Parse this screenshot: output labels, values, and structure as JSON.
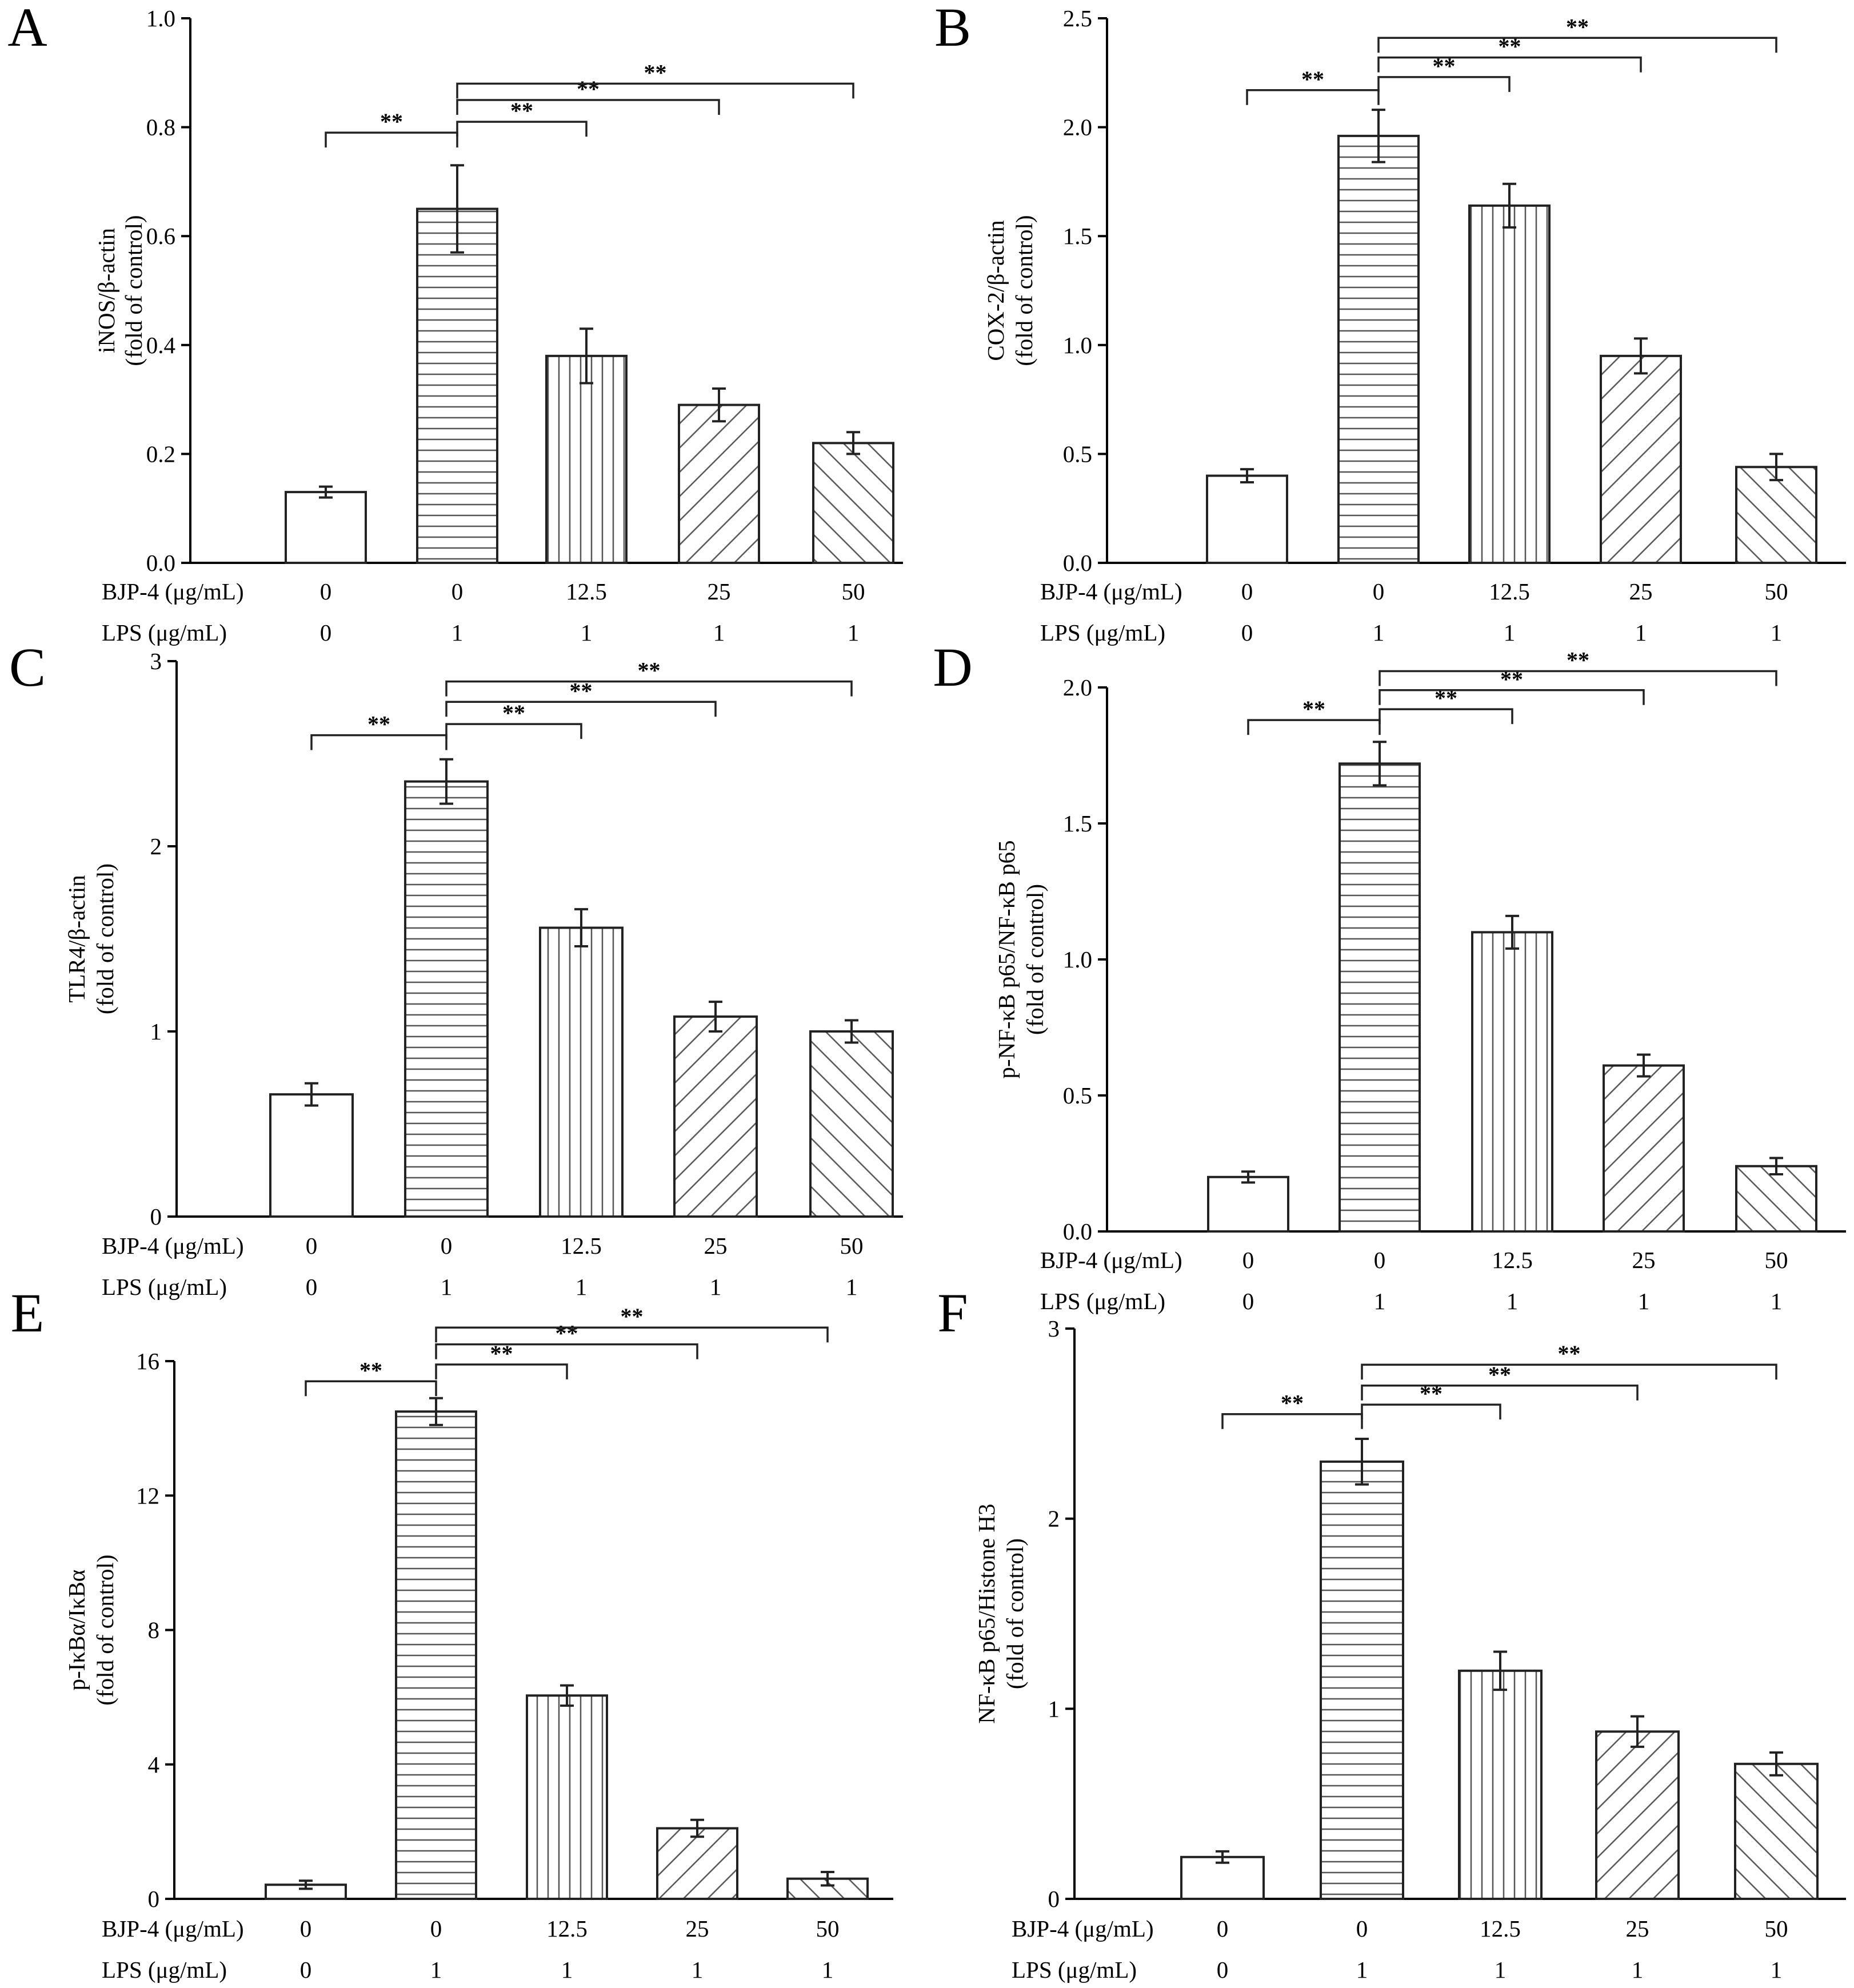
{
  "figure": {
    "row_labels": [
      "BJP-4 (μg/mL)",
      "LPS (μg/mL)"
    ],
    "bjp4_doses": [
      "0",
      "0",
      "12.5",
      "25",
      "50"
    ],
    "lps_doses": [
      "0",
      "1",
      "1",
      "1",
      "1"
    ],
    "significance_mark": "**",
    "pattern_names": [
      "blank",
      "horizontal-lines",
      "vertical-lines",
      "forward-diagonal",
      "backward-diagonal"
    ]
  },
  "chart_data": [
    {
      "panel": "A",
      "type": "bar",
      "ylabel": "iNOS/β-actin",
      "ylabel_unit": "(fold of control)",
      "ylim": [
        0,
        1.0
      ],
      "yticks": [
        0.0,
        0.2,
        0.4,
        0.6,
        0.8,
        1.0
      ],
      "ytick_labels": [
        "0.0",
        "0.2",
        "0.4",
        "0.6",
        "0.8",
        "1.0"
      ],
      "categories": [
        "BJP-4 0 / LPS 0",
        "BJP-4 0 / LPS 1",
        "BJP-4 12.5 / LPS 1",
        "BJP-4 25 / LPS 1",
        "BJP-4 50 / LPS 1"
      ],
      "values": [
        0.13,
        0.65,
        0.38,
        0.29,
        0.22
      ],
      "errors": [
        0.01,
        0.08,
        0.05,
        0.03,
        0.02
      ],
      "significance": [
        {
          "from": 0,
          "to": 1,
          "y": 0.79,
          "label": "**"
        },
        {
          "from": 1,
          "to": 2,
          "y": 0.81,
          "label": "**"
        },
        {
          "from": 1,
          "to": 3,
          "y": 0.85,
          "label": "**"
        },
        {
          "from": 1,
          "to": 4,
          "y": 0.88,
          "label": "**"
        }
      ]
    },
    {
      "panel": "B",
      "type": "bar",
      "ylabel": "COX-2/β-actin",
      "ylabel_unit": "(fold of control)",
      "ylim": [
        0,
        2.5
      ],
      "yticks": [
        0.0,
        0.5,
        1.0,
        1.5,
        2.0,
        2.5
      ],
      "ytick_labels": [
        "0.0",
        "0.5",
        "1.0",
        "1.5",
        "2.0",
        "2.5"
      ],
      "categories": [
        "BJP-4 0 / LPS 0",
        "BJP-4 0 / LPS 1",
        "BJP-4 12.5 / LPS 1",
        "BJP-4 25 / LPS 1",
        "BJP-4 50 / LPS 1"
      ],
      "values": [
        0.4,
        1.96,
        1.64,
        0.95,
        0.44
      ],
      "errors": [
        0.03,
        0.12,
        0.1,
        0.08,
        0.06
      ],
      "significance": [
        {
          "from": 0,
          "to": 1,
          "y": 2.17,
          "label": "**"
        },
        {
          "from": 1,
          "to": 2,
          "y": 2.23,
          "label": "**"
        },
        {
          "from": 1,
          "to": 3,
          "y": 2.32,
          "label": "**"
        },
        {
          "from": 1,
          "to": 4,
          "y": 2.41,
          "label": "**"
        }
      ]
    },
    {
      "panel": "C",
      "type": "bar",
      "ylabel": "TLR4/β-actin",
      "ylabel_unit": "(fold of control)",
      "ylim": [
        0,
        3
      ],
      "yticks": [
        0,
        1,
        2,
        3
      ],
      "ytick_labels": [
        "0",
        "1",
        "2",
        "3"
      ],
      "categories": [
        "BJP-4 0 / LPS 0",
        "BJP-4 0 / LPS 1",
        "BJP-4 12.5 / LPS 1",
        "BJP-4 25 / LPS 1",
        "BJP-4 50 / LPS 1"
      ],
      "values": [
        0.66,
        2.35,
        1.56,
        1.08,
        1.0
      ],
      "errors": [
        0.06,
        0.12,
        0.1,
        0.08,
        0.06
      ],
      "significance": [
        {
          "from": 0,
          "to": 1,
          "y": 2.6,
          "label": "**"
        },
        {
          "from": 1,
          "to": 2,
          "y": 2.66,
          "label": "**"
        },
        {
          "from": 1,
          "to": 3,
          "y": 2.78,
          "label": "**"
        },
        {
          "from": 1,
          "to": 4,
          "y": 2.89,
          "label": "**"
        }
      ]
    },
    {
      "panel": "D",
      "type": "bar",
      "ylabel": "p-NF-κB p65/NF-κB p65",
      "ylabel_unit": "(fold of control)",
      "ylim": [
        0,
        2.0
      ],
      "yticks": [
        0.0,
        0.5,
        1.0,
        1.5,
        2.0
      ],
      "ytick_labels": [
        "0.0",
        "0.5",
        "1.0",
        "1.5",
        "2.0"
      ],
      "categories": [
        "BJP-4 0 / LPS 0",
        "BJP-4 0 / LPS 1",
        "BJP-4 12.5 / LPS 1",
        "BJP-4 25 / LPS 1",
        "BJP-4 50 / LPS 1"
      ],
      "values": [
        0.2,
        1.72,
        1.1,
        0.61,
        0.24
      ],
      "errors": [
        0.02,
        0.08,
        0.06,
        0.04,
        0.03
      ],
      "significance": [
        {
          "from": 0,
          "to": 1,
          "y": 1.88,
          "label": "**"
        },
        {
          "from": 1,
          "to": 2,
          "y": 1.92,
          "label": "**"
        },
        {
          "from": 1,
          "to": 3,
          "y": 1.99,
          "label": "**"
        },
        {
          "from": 1,
          "to": 4,
          "y": 2.06,
          "label": "**"
        }
      ]
    },
    {
      "panel": "E",
      "type": "bar",
      "ylabel": "p-IκBα/IκBα",
      "ylabel_unit": "(fold of control)",
      "ylim": [
        0,
        16
      ],
      "yticks": [
        0,
        4,
        8,
        12,
        16
      ],
      "ytick_labels": [
        "0",
        "4",
        "8",
        "12",
        "16"
      ],
      "categories": [
        "BJP-4 0 / LPS 0",
        "BJP-4 0 / LPS 1",
        "BJP-4 12.5 / LPS 1",
        "BJP-4 25 / LPS 1",
        "BJP-4 50 / LPS 1"
      ],
      "values": [
        0.42,
        14.5,
        6.05,
        2.1,
        0.6
      ],
      "errors": [
        0.12,
        0.4,
        0.3,
        0.25,
        0.2
      ],
      "significance": [
        {
          "from": 0,
          "to": 1,
          "y": 15.4,
          "label": "**"
        },
        {
          "from": 1,
          "to": 2,
          "y": 15.9,
          "label": "**"
        },
        {
          "from": 1,
          "to": 3,
          "y": 16.5,
          "label": "**"
        },
        {
          "from": 1,
          "to": 4,
          "y": 17.0,
          "label": "**"
        }
      ]
    },
    {
      "panel": "F",
      "type": "bar",
      "ylabel": "NF-κB p65/Histone H3",
      "ylabel_unit": "(fold of control)",
      "ylim": [
        0,
        3
      ],
      "yticks": [
        0,
        1,
        2,
        3
      ],
      "ytick_labels": [
        "0",
        "1",
        "2",
        "3"
      ],
      "categories": [
        "BJP-4 0 / LPS 0",
        "BJP-4 0 / LPS 1",
        "BJP-4 12.5 / LPS 1",
        "BJP-4 25 / LPS 1",
        "BJP-4 50 / LPS 1"
      ],
      "values": [
        0.22,
        2.3,
        1.2,
        0.88,
        0.71
      ],
      "errors": [
        0.03,
        0.12,
        0.1,
        0.08,
        0.06
      ],
      "significance": [
        {
          "from": 0,
          "to": 1,
          "y": 2.55,
          "label": "**"
        },
        {
          "from": 1,
          "to": 2,
          "y": 2.6,
          "label": "**"
        },
        {
          "from": 1,
          "to": 3,
          "y": 2.7,
          "label": "**"
        },
        {
          "from": 1,
          "to": 4,
          "y": 2.81,
          "label": "**"
        }
      ]
    }
  ]
}
